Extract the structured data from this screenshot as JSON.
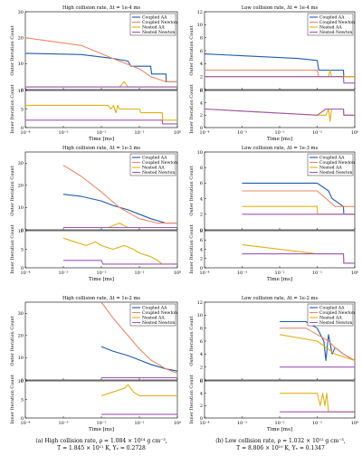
{
  "captions": {
    "a": [
      "(a) High collision rate, ρ = 1.084 × 10¹⁴ g cm⁻³,",
      "T = 1.845 × 10¹¹ K, Yₑ = 0.2728"
    ],
    "b": [
      "(b) Low collision rate, ρ = 1.032 × 10¹² g cm⁻³,",
      "T = 8.806 × 10¹⁰ K, Yₑ = 0.1347"
    ]
  },
  "shared": {
    "ylabel_top": "Outer Iteration Count",
    "ylabel_bottom": "Inner Iteration Count",
    "xlabel": "Time [ms]",
    "series_colors": {
      "Coupled AA": "#1f5aa6",
      "Coupled Newton": "#e8896b",
      "Nested AA": "#e0b01a",
      "Nested Newton": "#9b59b6"
    }
  },
  "chart_data": [
    {
      "type": "line",
      "x_scale": "log",
      "title": "High collision rate, Δt = 1e-4 ms",
      "xlim": [
        0.0001,
        1
      ],
      "xticks": [
        0.0001,
        0.001,
        0.01,
        0.1,
        1
      ],
      "xticklabels": [
        "10⁻⁴",
        "10⁻³",
        "10⁻²",
        "10⁻¹",
        "10⁰"
      ],
      "top": {
        "ylim": [
          0,
          30
        ],
        "yticks": [
          0,
          10,
          20,
          30
        ],
        "legend": "top-right",
        "series": [
          {
            "name": "Coupled AA",
            "x": [
              0.0001,
              0.003,
              0.02,
              0.05,
              0.06,
              0.2,
              0.21,
              0.5,
              0.51,
              1
            ],
            "y": [
              14,
              13.5,
              12,
              11,
              9,
              9,
              6,
              6,
              3,
              3
            ]
          },
          {
            "name": "Coupled Newton",
            "x": [
              0.0001,
              0.003,
              0.02,
              0.1,
              0.2,
              0.5,
              1
            ],
            "y": [
              20,
              17,
              12,
              8,
              5,
              3,
              3
            ]
          },
          {
            "name": "Nested AA",
            "x": [
              0.0001,
              0.03,
              0.04,
              0.05,
              0.06,
              1
            ],
            "y": [
              1,
              1,
              3,
              1,
              1,
              1
            ]
          },
          {
            "name": "Nested Newton",
            "x": [
              0.0001,
              1
            ],
            "y": [
              1,
              1
            ]
          }
        ]
      },
      "bottom": {
        "ylim": [
          0,
          10
        ],
        "yticks": [
          0,
          5,
          10
        ],
        "series": [
          {
            "name": "Nested AA",
            "x": [
              0.0001,
              0.015,
              0.018,
              0.021,
              0.024,
              0.027,
              0.03,
              0.05,
              0.1,
              0.11,
              0.4,
              0.41,
              1
            ],
            "y": [
              6,
              6,
              5,
              6,
              4,
              6,
              5,
              5,
              5,
              4,
              4,
              2,
              2
            ]
          },
          {
            "name": "Nested Newton",
            "x": [
              0.0001,
              0.4,
              0.41,
              1
            ],
            "y": [
              2,
              2,
              1,
              1
            ]
          }
        ]
      }
    },
    {
      "type": "line",
      "x_scale": "log",
      "title": "Low collision rate, Δt = 1e-4 ms",
      "xlim": [
        0.0001,
        1
      ],
      "xticks": [
        0.0001,
        0.001,
        0.01,
        0.1,
        1
      ],
      "xticklabels": [
        "10⁻⁴",
        "10⁻³",
        "10⁻²",
        "10⁻¹",
        "10⁰"
      ],
      "top": {
        "ylim": [
          0,
          12
        ],
        "yticks": [
          0,
          2,
          4,
          6,
          8,
          10,
          12
        ],
        "legend": "top-right",
        "series": [
          {
            "name": "Coupled AA",
            "x": [
              0.0001,
              0.03,
              0.1,
              0.11,
              0.5,
              0.51,
              1
            ],
            "y": [
              5.5,
              4.8,
              4.5,
              3,
              3,
              2,
              2
            ]
          },
          {
            "name": "Coupled Newton",
            "x": [
              0.0001,
              0.1,
              0.11,
              1
            ],
            "y": [
              3,
              3,
              2,
              2
            ]
          },
          {
            "name": "Nested AA",
            "x": [
              0.0001,
              0.2,
              0.22,
              0.24,
              1
            ],
            "y": [
              2,
              2,
              3,
              2,
              2
            ]
          },
          {
            "name": "Nested Newton",
            "x": [
              0.0001,
              0.5,
              0.51,
              1
            ],
            "y": [
              2,
              2,
              1,
              1
            ]
          }
        ]
      },
      "bottom": {
        "ylim": [
          0,
          6
        ],
        "yticks": [
          0,
          2,
          4,
          6
        ],
        "series": [
          {
            "name": "Nested AA",
            "x": [
              0.0001,
              0.1,
              0.17,
              0.2,
              0.22,
              0.24,
              0.5,
              0.51,
              1
            ],
            "y": [
              3,
              2,
              2,
              3,
              1,
              3,
              3,
              2,
              2
            ]
          },
          {
            "name": "Nested Newton",
            "x": [
              0.0001,
              0.1,
              0.17,
              0.5,
              0.51,
              1
            ],
            "y": [
              3,
              2,
              3,
              3,
              2,
              2
            ]
          }
        ]
      }
    },
    {
      "type": "line",
      "x_scale": "log",
      "title": "High collision rate, Δt = 1e-3 ms",
      "xlim": [
        0.0001,
        1
      ],
      "xticks": [
        0.0001,
        0.001,
        0.01,
        0.1,
        1
      ],
      "xticklabels": [
        "10⁻⁴",
        "10⁻³",
        "10⁻²",
        "10⁻¹",
        "10⁰"
      ],
      "top": {
        "ylim": [
          0,
          35
        ],
        "yticks": [
          0,
          10,
          20,
          30
        ],
        "legend": "top-right",
        "series": [
          {
            "name": "Coupled AA",
            "x": [
              0.001,
              0.003,
              0.01,
              0.02,
              0.05,
              0.1,
              0.2,
              0.5,
              1
            ],
            "y": [
              16,
              15,
              13,
              11,
              9,
              7,
              5,
              3,
              3
            ]
          },
          {
            "name": "Coupled Newton",
            "x": [
              0.001,
              0.003,
              0.01,
              0.03,
              0.1,
              0.3,
              1
            ],
            "y": [
              29,
              24,
              17,
              10,
              5,
              3,
              3
            ]
          },
          {
            "name": "Nested AA",
            "x": [
              0.001,
              0.015,
              0.03,
              0.05,
              0.1,
              1
            ],
            "y": [
              1,
              1,
              3,
              1,
              1,
              1
            ]
          },
          {
            "name": "Nested Newton",
            "x": [
              0.001,
              1
            ],
            "y": [
              1,
              1
            ]
          }
        ]
      },
      "bottom": {
        "ylim": [
          0,
          10
        ],
        "yticks": [
          0,
          5,
          10
        ],
        "series": [
          {
            "name": "Nested AA",
            "x": [
              0.001,
              0.002,
              0.004,
              0.007,
              0.01,
              0.02,
              0.04,
              0.07,
              0.1,
              0.2,
              0.3,
              0.4,
              1
            ],
            "y": [
              8,
              7,
              6,
              7,
              6,
              5,
              6,
              5,
              4,
              3,
              2,
              1,
              1
            ]
          },
          {
            "name": "Nested Newton",
            "x": [
              0.001,
              0.01,
              0.011,
              1
            ],
            "y": [
              2,
              2,
              1,
              1
            ]
          }
        ]
      }
    },
    {
      "type": "line",
      "x_scale": "log",
      "title": "Low collision rate, Δt = 1e-3 ms",
      "xlim": [
        0.0001,
        1
      ],
      "xticks": [
        0.0001,
        0.001,
        0.01,
        0.1,
        1
      ],
      "xticklabels": [
        "10⁻⁴",
        "10⁻³",
        "10⁻²",
        "10⁻¹",
        "10⁰"
      ],
      "top": {
        "ylim": [
          0,
          10
        ],
        "yticks": [
          0,
          2,
          4,
          6,
          8,
          10
        ],
        "legend": "top-right",
        "series": [
          {
            "name": "Coupled AA",
            "x": [
              0.001,
              0.1,
              0.2,
              0.25,
              0.5,
              0.51,
              1
            ],
            "y": [
              6,
              6,
              5,
              4,
              3,
              2,
              2
            ]
          },
          {
            "name": "Coupled Newton",
            "x": [
              0.001,
              0.1,
              0.3,
              1
            ],
            "y": [
              5,
              5,
              3,
              3
            ]
          },
          {
            "name": "Nested AA",
            "x": [
              0.001,
              0.1,
              0.101,
              1
            ],
            "y": [
              3,
              3,
              2,
              2
            ]
          },
          {
            "name": "Nested Newton",
            "x": [
              0.001,
              1
            ],
            "y": [
              2,
              2
            ]
          }
        ]
      },
      "bottom": {
        "ylim": [
          0,
          8
        ],
        "yticks": [
          0,
          2,
          4,
          6,
          8
        ],
        "series": [
          {
            "name": "Nested AA",
            "x": [
              0.001,
              0.1,
              0.5,
              0.51,
              1
            ],
            "y": [
              5,
              3,
              3,
              1,
              1
            ]
          },
          {
            "name": "Nested Newton",
            "x": [
              0.001,
              0.1,
              0.5,
              0.51,
              1
            ],
            "y": [
              3,
              3,
              3,
              1,
              1
            ]
          }
        ]
      }
    },
    {
      "type": "line",
      "x_scale": "log",
      "title": "High collision rate, Δt = 1e-2 ms",
      "xlim": [
        0.0001,
        1
      ],
      "xticks": [
        0.0001,
        0.001,
        0.01,
        0.1,
        1
      ],
      "xticklabels": [
        "10⁻⁴",
        "10⁻³",
        "10⁻²",
        "10⁻¹",
        "10⁰"
      ],
      "top": {
        "ylim": [
          0,
          35
        ],
        "yticks": [
          0,
          10,
          20,
          30
        ],
        "legend": "top-right",
        "series": [
          {
            "name": "Coupled AA",
            "x": [
              0.01,
              0.02,
              0.05,
              0.1,
              0.2,
              0.5,
              1
            ],
            "y": [
              15,
              13,
              11,
              9,
              7,
              5,
              4
            ]
          },
          {
            "name": "Coupled Newton",
            "x": [
              0.01,
              0.02,
              0.05,
              0.1,
              0.2,
              0.5,
              1
            ],
            "y": [
              35,
              28,
              20,
              14,
              9,
              5,
              3
            ]
          },
          {
            "name": "Nested AA",
            "x": [
              0.01,
              1
            ],
            "y": [
              1,
              1
            ]
          },
          {
            "name": "Nested Newton",
            "x": [
              0.01,
              1
            ],
            "y": [
              1,
              1
            ]
          }
        ]
      },
      "bottom": {
        "ylim": [
          0,
          10
        ],
        "yticks": [
          0,
          5,
          10
        ],
        "series": [
          {
            "name": "Nested AA",
            "x": [
              0.01,
              0.02,
              0.04,
              0.05,
              0.07,
              0.1,
              0.2,
              0.5,
              1
            ],
            "y": [
              6,
              7,
              8,
              9,
              7,
              6,
              6,
              6,
              6
            ]
          },
          {
            "name": "Nested Newton",
            "x": [
              0.01,
              1
            ],
            "y": [
              1,
              1
            ]
          }
        ]
      }
    },
    {
      "type": "line",
      "x_scale": "log",
      "title": "Low collision rate, Δt = 1e-2 ms",
      "xlim": [
        0.0001,
        1
      ],
      "xticks": [
        0.0001,
        0.001,
        0.01,
        0.1,
        1
      ],
      "xticklabels": [
        "10⁻⁴",
        "10⁻³",
        "10⁻²",
        "10⁻¹",
        "10⁰"
      ],
      "top": {
        "ylim": [
          0,
          12
        ],
        "yticks": [
          0,
          2,
          4,
          6,
          8,
          10,
          12
        ],
        "legend": "top-right",
        "series": [
          {
            "name": "Coupled AA",
            "x": [
              0.01,
              0.05,
              0.1,
              0.15,
              0.17,
              0.2,
              0.25,
              0.3,
              0.5,
              1
            ],
            "y": [
              9,
              9,
              8,
              6,
              3,
              7,
              4,
              5,
              4,
              3
            ]
          },
          {
            "name": "Coupled Newton",
            "x": [
              0.01,
              0.05,
              0.1,
              0.2,
              0.3,
              0.5,
              1
            ],
            "y": [
              8,
              8,
              7,
              6,
              5,
              4,
              3
            ]
          },
          {
            "name": "Nested AA",
            "x": [
              0.01,
              0.1,
              0.3,
              1
            ],
            "y": [
              7,
              6,
              4,
              3
            ]
          },
          {
            "name": "Nested Newton",
            "x": [
              0.01,
              1
            ],
            "y": [
              2,
              2
            ]
          }
        ]
      },
      "bottom": {
        "ylim": [
          0,
          6
        ],
        "yticks": [
          0,
          2,
          4,
          6
        ],
        "series": [
          {
            "name": "Nested AA",
            "x": [
              0.01,
              0.1,
              0.12,
              0.14,
              0.16,
              0.18,
              0.2,
              0.3,
              1
            ],
            "y": [
              4,
              4,
              2,
              4,
              2,
              4,
              1,
              1,
              1
            ]
          },
          {
            "name": "Nested Newton",
            "x": [
              0.01,
              1
            ],
            "y": [
              1,
              1
            ]
          }
        ]
      }
    }
  ]
}
